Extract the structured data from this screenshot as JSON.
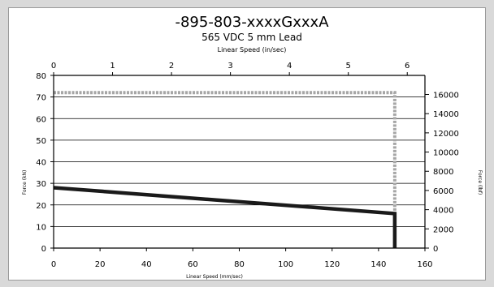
{
  "chart_data": {
    "type": "line",
    "title": "-895-803-xxxxGxxxA",
    "subtitle": "565 VDC 5 mm Lead",
    "xlabel": "Linear Speed (mm/sec)",
    "x2label": "Linear Speed (in/sec)",
    "ylabel": "Force (kN)",
    "y2label": "Force (lbf)",
    "xlim": [
      0,
      160
    ],
    "x2lim": [
      0,
      6.3
    ],
    "ylim": [
      0,
      80
    ],
    "y2lim": [
      0,
      17984
    ],
    "xticks": [
      "0",
      "20",
      "40",
      "60",
      "80",
      "100",
      "120",
      "140",
      "160"
    ],
    "x2ticks": [
      "0",
      "1",
      "2",
      "3",
      "4",
      "5",
      "6"
    ],
    "yticks": [
      "0",
      "10",
      "20",
      "30",
      "40",
      "50",
      "60",
      "70",
      "80"
    ],
    "y2ticks": [
      "0",
      "2000",
      "4000",
      "6000",
      "8000",
      "10000",
      "12000",
      "14000",
      "16000"
    ],
    "grid": "horizontal",
    "series": [
      {
        "color": "#a6a6a6",
        "dashed": true,
        "x": [
          0,
          147,
          147
        ],
        "y": [
          72,
          72,
          0
        ]
      },
      {
        "color": "#1a1a1a",
        "dashed": false,
        "x": [
          0,
          147,
          147
        ],
        "y": [
          28,
          16,
          0
        ]
      }
    ]
  }
}
